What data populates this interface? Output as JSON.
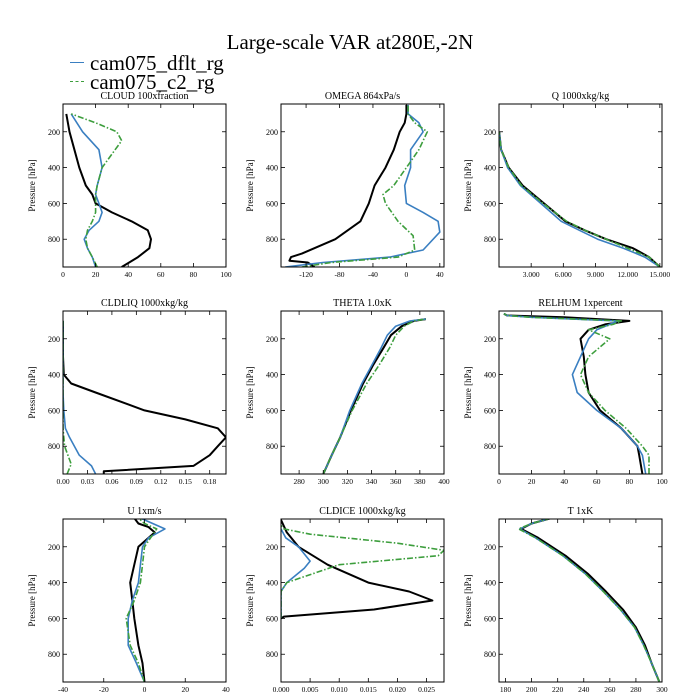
{
  "figure": {
    "title": "Large-scale VAR at280E,-2N",
    "legend": [
      {
        "name": "cam075_dflt_rg",
        "color": "#3a7fc1",
        "dash": "solid"
      },
      {
        "name": "cam075_c2_rg",
        "color": "#3d9e3d",
        "dash": "dashdot"
      }
    ],
    "reference_line_color": "#000000"
  },
  "chart_data": [
    {
      "type": "line",
      "title": "CLOUD 100xfraction",
      "ylabel": "Pressure [hPa]",
      "xlim": [
        0,
        100
      ],
      "ylim": [
        955,
        45
      ],
      "y_reversed": true,
      "xticks": [
        0,
        20,
        40,
        60,
        80,
        100
      ],
      "xticklabels": [
        "0",
        "20",
        "40",
        "60",
        "80",
        "100"
      ],
      "yticks": [
        200,
        400,
        600,
        800
      ],
      "yticklabels": [
        "200",
        "400",
        "600",
        "800"
      ],
      "series": [
        {
          "x": [
            36,
            46,
            53,
            54,
            52,
            42,
            30,
            20,
            18,
            14,
            10,
            7,
            4,
            2
          ],
          "y": [
            955,
            900,
            850,
            800,
            750,
            700,
            650,
            600,
            550,
            500,
            400,
            300,
            200,
            100
          ]
        },
        {
          "x": [
            20,
            18,
            15,
            13,
            16,
            22,
            24,
            22,
            20,
            21,
            24,
            22,
            12,
            5
          ],
          "y": [
            955,
            900,
            850,
            800,
            750,
            700,
            650,
            600,
            550,
            500,
            400,
            300,
            200,
            100
          ]
        },
        {
          "x": [
            21,
            18,
            15,
            14,
            15,
            18,
            20,
            20,
            20,
            21,
            24,
            36,
            33,
            20,
            5
          ],
          "y": [
            955,
            900,
            850,
            800,
            750,
            700,
            650,
            600,
            550,
            500,
            400,
            250,
            200,
            150,
            100
          ]
        }
      ]
    },
    {
      "type": "line",
      "title": "OMEGA 864xPa/s",
      "ylabel": "Pressure [hPa]",
      "xlim": [
        -150,
        45
      ],
      "ylim": [
        955,
        45
      ],
      "y_reversed": true,
      "xticks": [
        -120,
        -80,
        -40,
        0,
        40
      ],
      "xticklabels": [
        "-120",
        "-80",
        "-40",
        "0",
        "40"
      ],
      "yticks": [
        200,
        400,
        600,
        800
      ],
      "yticklabels": [
        "200",
        "400",
        "600",
        "800"
      ],
      "series": [
        {
          "x": [
            -110,
            -118,
            -140,
            -138,
            -125,
            -110,
            -85,
            -55,
            -45,
            -38,
            -25,
            -15,
            -8,
            -2,
            0,
            0
          ],
          "y": [
            955,
            930,
            920,
            900,
            880,
            850,
            800,
            700,
            600,
            500,
            400,
            300,
            200,
            150,
            100,
            50
          ]
        },
        {
          "x": [
            -145,
            -100,
            -60,
            -20,
            20,
            40,
            38,
            20,
            0,
            -2,
            5,
            5,
            20,
            15,
            2,
            2
          ],
          "y": [
            955,
            930,
            915,
            900,
            860,
            760,
            700,
            650,
            600,
            500,
            400,
            300,
            200,
            150,
            100,
            50
          ]
        },
        {
          "x": [
            -125,
            -90,
            -50,
            -10,
            10,
            8,
            -10,
            -25,
            -28,
            -15,
            0,
            15,
            25,
            10,
            2,
            2
          ],
          "y": [
            955,
            930,
            915,
            900,
            860,
            780,
            700,
            600,
            550,
            500,
            400,
            300,
            200,
            150,
            100,
            50
          ]
        }
      ]
    },
    {
      "type": "line",
      "title": "Q 1000xkg/kg",
      "ylabel": "Pressure [hPa]",
      "xlim": [
        0,
        15.2
      ],
      "ylim": [
        955,
        45
      ],
      "y_reversed": true,
      "xticks": [
        3,
        6,
        9,
        12,
        15
      ],
      "xticklabels": [
        "3.000",
        "6.000",
        "9.000",
        "12.000",
        "15.000"
      ],
      "yticks": [
        200,
        400,
        600,
        800
      ],
      "yticklabels": [
        "200",
        "400",
        "600",
        "800"
      ],
      "series": [
        {
          "x": [
            15,
            14,
            12.5,
            10,
            8,
            6.2,
            4.2,
            2.2,
            0.9,
            0.2,
            0.02
          ],
          "y": [
            955,
            900,
            850,
            800,
            750,
            700,
            600,
            500,
            400,
            300,
            200
          ]
        },
        {
          "x": [
            15,
            13.6,
            11.6,
            9.2,
            7.5,
            5.8,
            3.9,
            2,
            0.8,
            0.2,
            0.02
          ],
          "y": [
            955,
            900,
            850,
            800,
            750,
            700,
            600,
            500,
            400,
            300,
            200
          ]
        },
        {
          "x": [
            15,
            14,
            12,
            10,
            8,
            6.3,
            4.1,
            2.1,
            0.9,
            0.2,
            0.02
          ],
          "y": [
            955,
            900,
            850,
            800,
            750,
            700,
            600,
            500,
            400,
            300,
            200
          ]
        }
      ]
    },
    {
      "type": "line",
      "title": "CLDLIQ 1000xkg/kg",
      "ylabel": "Pressure [hPa]",
      "xlim": [
        0,
        0.2
      ],
      "ylim": [
        955,
        45
      ],
      "y_reversed": true,
      "xticks": [
        0,
        0.03,
        0.06,
        0.09,
        0.12,
        0.15,
        0.18
      ],
      "xticklabels": [
        "0.00",
        "0.03",
        "0.06",
        "0.09",
        "0.12",
        "0.15",
        "0.18"
      ],
      "yticks": [
        200,
        400,
        600,
        800
      ],
      "yticklabels": [
        "200",
        "400",
        "600",
        "800"
      ],
      "series": [
        {
          "x": [
            0.05,
            0.05,
            0.16,
            0.18,
            0.19,
            0.2,
            0.19,
            0.15,
            0.1,
            0.04,
            0.01,
            0.001,
            0,
            0
          ],
          "y": [
            955,
            940,
            910,
            850,
            800,
            750,
            700,
            650,
            600,
            500,
            450,
            400,
            300,
            100
          ]
        },
        {
          "x": [
            0.04,
            0.035,
            0.02,
            0.008,
            0.003,
            0.001,
            0,
            0
          ],
          "y": [
            955,
            910,
            850,
            750,
            700,
            600,
            500,
            100
          ]
        },
        {
          "x": [
            0.005,
            0.01,
            0.006,
            0.002,
            0,
            0
          ],
          "y": [
            955,
            900,
            850,
            800,
            700,
            100
          ]
        }
      ]
    },
    {
      "type": "line",
      "title": "THETA 1.0xK",
      "ylabel": "Pressure [hPa]",
      "xlim": [
        265,
        400
      ],
      "ylim": [
        955,
        45
      ],
      "y_reversed": true,
      "xticks": [
        280,
        300,
        320,
        340,
        360,
        380,
        400
      ],
      "xticklabels": [
        "280",
        "300",
        "320",
        "340",
        "360",
        "380",
        "400"
      ],
      "yticks": [
        200,
        400,
        600,
        800
      ],
      "yticklabels": [
        "200",
        "400",
        "600",
        "800"
      ],
      "series": [
        {
          "x": [
            300,
            307,
            314,
            323,
            333,
            341,
            350,
            356,
            365,
            375,
            385
          ],
          "y": [
            955,
            850,
            750,
            600,
            450,
            350,
            250,
            180,
            130,
            100,
            90
          ]
        },
        {
          "x": [
            300,
            307,
            314,
            322,
            332,
            340,
            348,
            353,
            360,
            372,
            385
          ],
          "y": [
            955,
            850,
            750,
            600,
            450,
            350,
            250,
            180,
            130,
            100,
            90
          ]
        },
        {
          "x": [
            300,
            307,
            314,
            324,
            336,
            346,
            355,
            360,
            367,
            375,
            385
          ],
          "y": [
            955,
            850,
            750,
            600,
            450,
            350,
            250,
            180,
            130,
            100,
            90
          ]
        }
      ]
    },
    {
      "type": "line",
      "title": "RELHUM 1xpercent",
      "ylabel": "Pressure [hPa]",
      "xlim": [
        0,
        100
      ],
      "ylim": [
        955,
        45
      ],
      "y_reversed": true,
      "xticks": [
        0,
        20,
        40,
        60,
        80,
        100
      ],
      "xticklabels": [
        "0",
        "20",
        "40",
        "60",
        "80",
        "100"
      ],
      "yticks": [
        200,
        400,
        600,
        800
      ],
      "yticklabels": [
        "200",
        "400",
        "600",
        "800"
      ],
      "series": [
        {
          "x": [
            88,
            86,
            85,
            75,
            62,
            55,
            53,
            52,
            50,
            55,
            65,
            80,
            40,
            5,
            3
          ],
          "y": [
            955,
            850,
            800,
            700,
            600,
            500,
            400,
            300,
            200,
            150,
            120,
            100,
            80,
            70,
            60
          ]
        },
        {
          "x": [
            90,
            88,
            85,
            75,
            60,
            48,
            45,
            50,
            55,
            60,
            68,
            73,
            20,
            5,
            3
          ],
          "y": [
            955,
            850,
            800,
            700,
            600,
            500,
            400,
            300,
            200,
            150,
            120,
            100,
            80,
            70,
            60
          ]
        },
        {
          "x": [
            92,
            92,
            88,
            78,
            65,
            55,
            50,
            55,
            68,
            55,
            70,
            75,
            20,
            5,
            3
          ],
          "y": [
            955,
            850,
            800,
            700,
            600,
            500,
            400,
            300,
            200,
            150,
            120,
            100,
            80,
            70,
            60
          ]
        }
      ]
    },
    {
      "type": "line",
      "title": "U 1xm/s",
      "ylabel": "Pressure [hPa]",
      "xlim": [
        -40,
        40
      ],
      "ylim": [
        955,
        45
      ],
      "y_reversed": true,
      "xticks": [
        -40,
        -20,
        0,
        20,
        40
      ],
      "xticklabels": [
        "-40",
        "-20",
        "0",
        "20",
        "40"
      ],
      "yticks": [
        200,
        400,
        600,
        800
      ],
      "yticklabels": [
        "200",
        "400",
        "600",
        "800"
      ],
      "series": [
        {
          "x": [
            0,
            -1,
            -3,
            -5,
            -6,
            -7,
            -5,
            -3,
            5,
            2,
            -3,
            -5
          ],
          "y": [
            955,
            850,
            750,
            600,
            500,
            400,
            300,
            200,
            120,
            90,
            70,
            40
          ]
        },
        {
          "x": [
            0,
            -4,
            -8,
            -8,
            -6,
            -3,
            -2,
            -1,
            2,
            10,
            4,
            -2
          ],
          "y": [
            955,
            850,
            750,
            600,
            500,
            400,
            300,
            200,
            150,
            100,
            70,
            40
          ]
        },
        {
          "x": [
            0,
            -3,
            -7,
            -9,
            -5,
            -2,
            -1,
            0,
            3,
            6,
            0,
            -3
          ],
          "y": [
            955,
            850,
            750,
            600,
            500,
            400,
            300,
            200,
            150,
            100,
            70,
            40
          ]
        }
      ]
    },
    {
      "type": "line",
      "title": "CLDICE 1000xkg/kg",
      "ylabel": "Pressure [hPa]",
      "xlim": [
        0,
        0.028
      ],
      "ylim": [
        955,
        45
      ],
      "y_reversed": true,
      "xticks": [
        0,
        0.005,
        0.01,
        0.015,
        0.02,
        0.025
      ],
      "xticklabels": [
        "0.000",
        "0.005",
        "0.010",
        "0.015",
        "0.020",
        "0.025"
      ],
      "yticks": [
        200,
        400,
        600,
        800
      ],
      "yticklabels": [
        "200",
        "400",
        "600",
        "800"
      ],
      "series": [
        {
          "x": [
            0,
            0.0005,
            0.016,
            0.026,
            0.022,
            0.015,
            0.008,
            0.003,
            0.001,
            0
          ],
          "y": [
            600,
            590,
            550,
            500,
            450,
            400,
            300,
            200,
            120,
            50
          ]
        },
        {
          "x": [
            0,
            0,
            0.001,
            0.004,
            0.005,
            0.003,
            0.0008,
            0
          ],
          "y": [
            600,
            450,
            400,
            320,
            280,
            200,
            150,
            100
          ]
        },
        {
          "x": [
            0,
            0,
            0.001,
            0.01,
            0.027,
            0.028,
            0.02,
            0.005,
            0.0005,
            0
          ],
          "y": [
            600,
            450,
            400,
            300,
            250,
            220,
            180,
            130,
            100,
            80
          ]
        }
      ]
    },
    {
      "type": "line",
      "title": "T 1xK",
      "ylabel": "Pressure [hPa]",
      "xlim": [
        175,
        300
      ],
      "ylim": [
        955,
        45
      ],
      "y_reversed": true,
      "xticks": [
        180,
        200,
        220,
        240,
        260,
        280,
        300
      ],
      "xticklabels": [
        "180",
        "200",
        "220",
        "240",
        "260",
        "280",
        "300"
      ],
      "yticks": [
        200,
        400,
        600,
        800
      ],
      "yticklabels": [
        "200",
        "400",
        "600",
        "800"
      ],
      "series": [
        {
          "x": [
            298,
            292,
            287,
            280,
            270,
            257,
            243,
            226,
            205,
            192,
            200,
            215
          ],
          "y": [
            955,
            850,
            750,
            650,
            550,
            450,
            350,
            250,
            150,
            100,
            70,
            40
          ]
        },
        {
          "x": [
            298,
            292,
            286,
            279,
            268,
            255,
            241,
            224,
            203,
            191,
            200,
            215
          ],
          "y": [
            955,
            850,
            750,
            650,
            550,
            450,
            350,
            250,
            150,
            100,
            70,
            40
          ]
        },
        {
          "x": [
            298,
            292,
            286,
            279,
            268,
            255,
            241,
            224,
            203,
            190,
            200,
            215
          ],
          "y": [
            955,
            850,
            750,
            650,
            550,
            450,
            350,
            250,
            150,
            100,
            70,
            40
          ]
        }
      ]
    }
  ]
}
